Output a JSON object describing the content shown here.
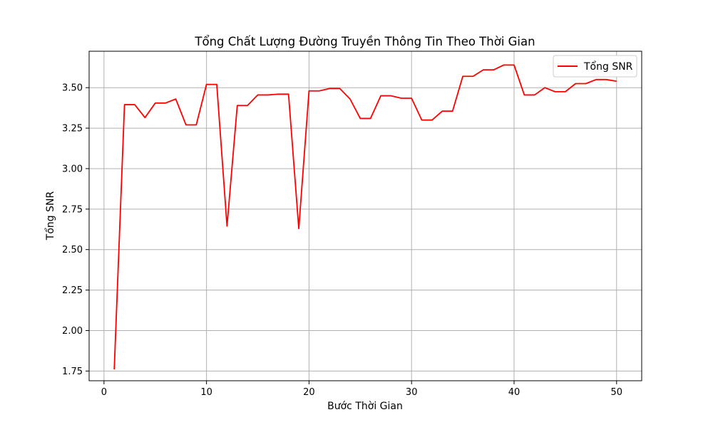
{
  "chart_data": {
    "type": "line",
    "title": "Tổng Chất Lượng Đường Truyền Thông Tin Theo Thời Gian",
    "xlabel": "Bước Thời Gian",
    "ylabel": "Tổng SNR",
    "xlim": [
      -1.45,
      52.45
    ],
    "ylim": [
      1.69,
      3.725
    ],
    "xticks": [
      0,
      10,
      20,
      30,
      40,
      50
    ],
    "yticks": [
      1.75,
      2.0,
      2.25,
      2.5,
      2.75,
      3.0,
      3.25,
      3.5
    ],
    "ytick_labels": [
      "1.75",
      "2.00",
      "2.25",
      "2.50",
      "2.75",
      "3.00",
      "3.25",
      "3.50"
    ],
    "xtick_labels": [
      "0",
      "10",
      "20",
      "30",
      "40",
      "50"
    ],
    "grid": true,
    "legend_position": "top-right",
    "series": [
      {
        "name": "Tổng SNR",
        "color": "#ff0000",
        "x": [
          1,
          2,
          3,
          4,
          5,
          6,
          7,
          8,
          9,
          10,
          11,
          12,
          13,
          14,
          15,
          16,
          17,
          18,
          19,
          20,
          21,
          22,
          23,
          24,
          25,
          26,
          27,
          28,
          29,
          30,
          31,
          32,
          33,
          34,
          35,
          36,
          37,
          38,
          39,
          40,
          41,
          42,
          43,
          44,
          45,
          46,
          47,
          48,
          49,
          50
        ],
        "values": [
          1.76,
          3.395,
          3.395,
          3.315,
          3.405,
          3.405,
          3.43,
          3.27,
          3.27,
          3.52,
          3.52,
          2.645,
          3.39,
          3.39,
          3.455,
          3.455,
          3.46,
          3.46,
          2.63,
          3.48,
          3.48,
          3.495,
          3.495,
          3.43,
          3.31,
          3.31,
          3.45,
          3.45,
          3.435,
          3.435,
          3.3,
          3.3,
          3.355,
          3.355,
          3.57,
          3.57,
          3.61,
          3.61,
          3.64,
          3.64,
          3.455,
          3.455,
          3.5,
          3.475,
          3.475,
          3.525,
          3.525,
          3.55,
          3.55,
          3.54
        ]
      }
    ]
  }
}
